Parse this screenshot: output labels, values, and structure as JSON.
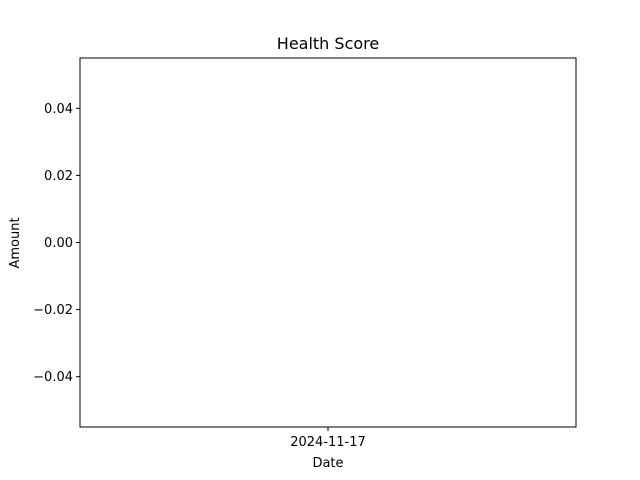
{
  "chart_data": {
    "type": "line",
    "title": "Health Score",
    "xlabel": "Date",
    "ylabel": "Amount",
    "x_tick_labels": [
      "2024-11-17"
    ],
    "y_ticks": [
      0.04,
      0.02,
      0.0,
      -0.02,
      -0.04
    ],
    "y_tick_labels": [
      "0.04",
      "0.02",
      "0.00",
      "−0.02",
      "−0.04"
    ],
    "ylim": [
      -0.055,
      0.055
    ],
    "series": [],
    "grid": false,
    "legend": "none"
  }
}
